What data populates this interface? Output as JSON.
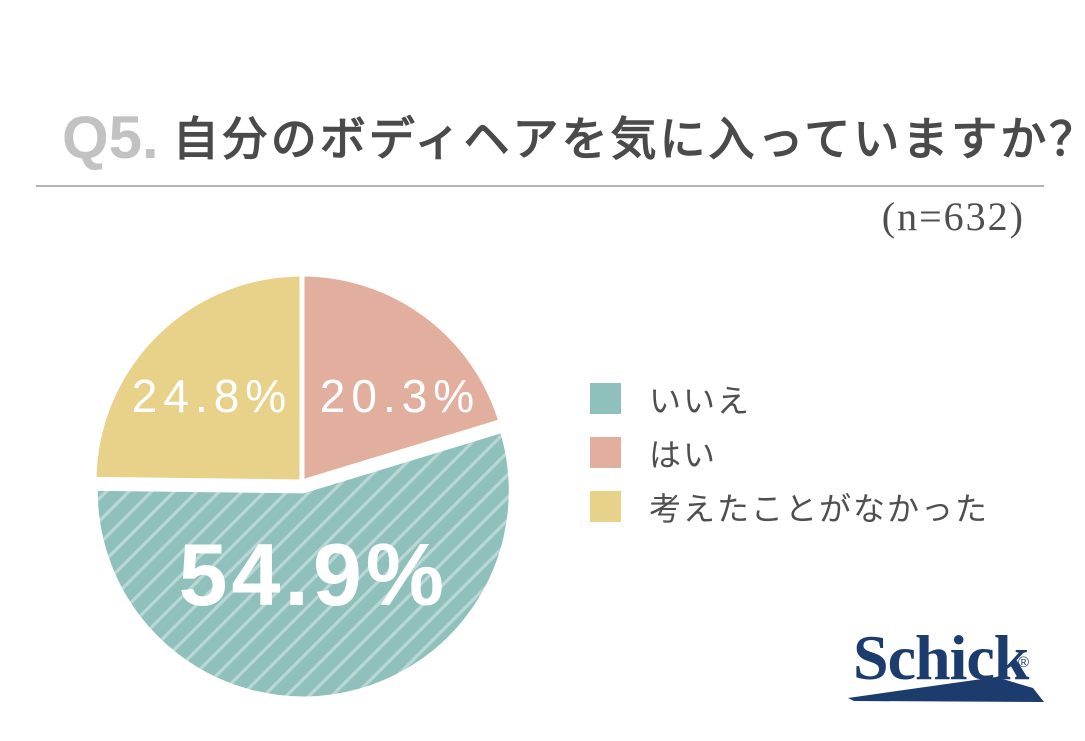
{
  "header": {
    "question_number": "Q5.",
    "question_title": "自分のボディヘアを気に入っていますか？",
    "sample_size_text": "(n=632)"
  },
  "chart_data": {
    "type": "pie",
    "title": "自分のボディヘアを気に入っていますか？",
    "sample_n": 632,
    "unit": "%",
    "start_angle_deg": -90,
    "direction": "clockwise",
    "legend_position": "right",
    "slices": [
      {
        "label": "いいえ",
        "value": 54.9,
        "display": "54.9%",
        "color": "#8fc0bc",
        "stripe_color": "#b9d8d5",
        "striped": true,
        "exploded": true
      },
      {
        "label": "はい",
        "value": 20.3,
        "display": "20.3%",
        "color": "#e2ae9e",
        "striped": false,
        "exploded": false
      },
      {
        "label": "考えたことがなかった",
        "value": 24.8,
        "display": "24.8%",
        "color": "#e8d28a",
        "striped": false,
        "exploded": false
      }
    ],
    "label_color": "#ffffff",
    "slice_border_color": "#ffffff"
  },
  "footer": {
    "logo_text": "Schick",
    "registered_mark": "®",
    "logo_color": "#1d3c6e"
  }
}
